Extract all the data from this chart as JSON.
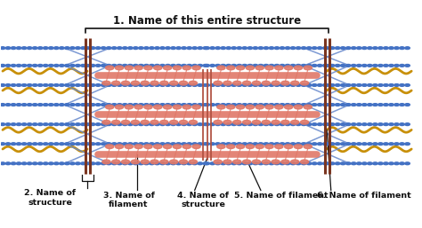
{
  "bg_color": "#ffffff",
  "title": "1. Name of this entire structure",
  "label2": "2. Name of\nstructure",
  "label3": "3. Name of\nfilament",
  "label4": "4. Name of\nstructure",
  "label5": "5. Name of filament",
  "label6": "6. Name of filament",
  "blue_color": "#4472c4",
  "gold_color": "#c8900a",
  "myosin_body": "#e07868",
  "myosin_head": "#e07868",
  "z_line_color": "#7a3520",
  "m_line_color": "#b05040",
  "bracket_color": "#222222",
  "text_color": "#111111",
  "x_cross_color": "#6688cc"
}
